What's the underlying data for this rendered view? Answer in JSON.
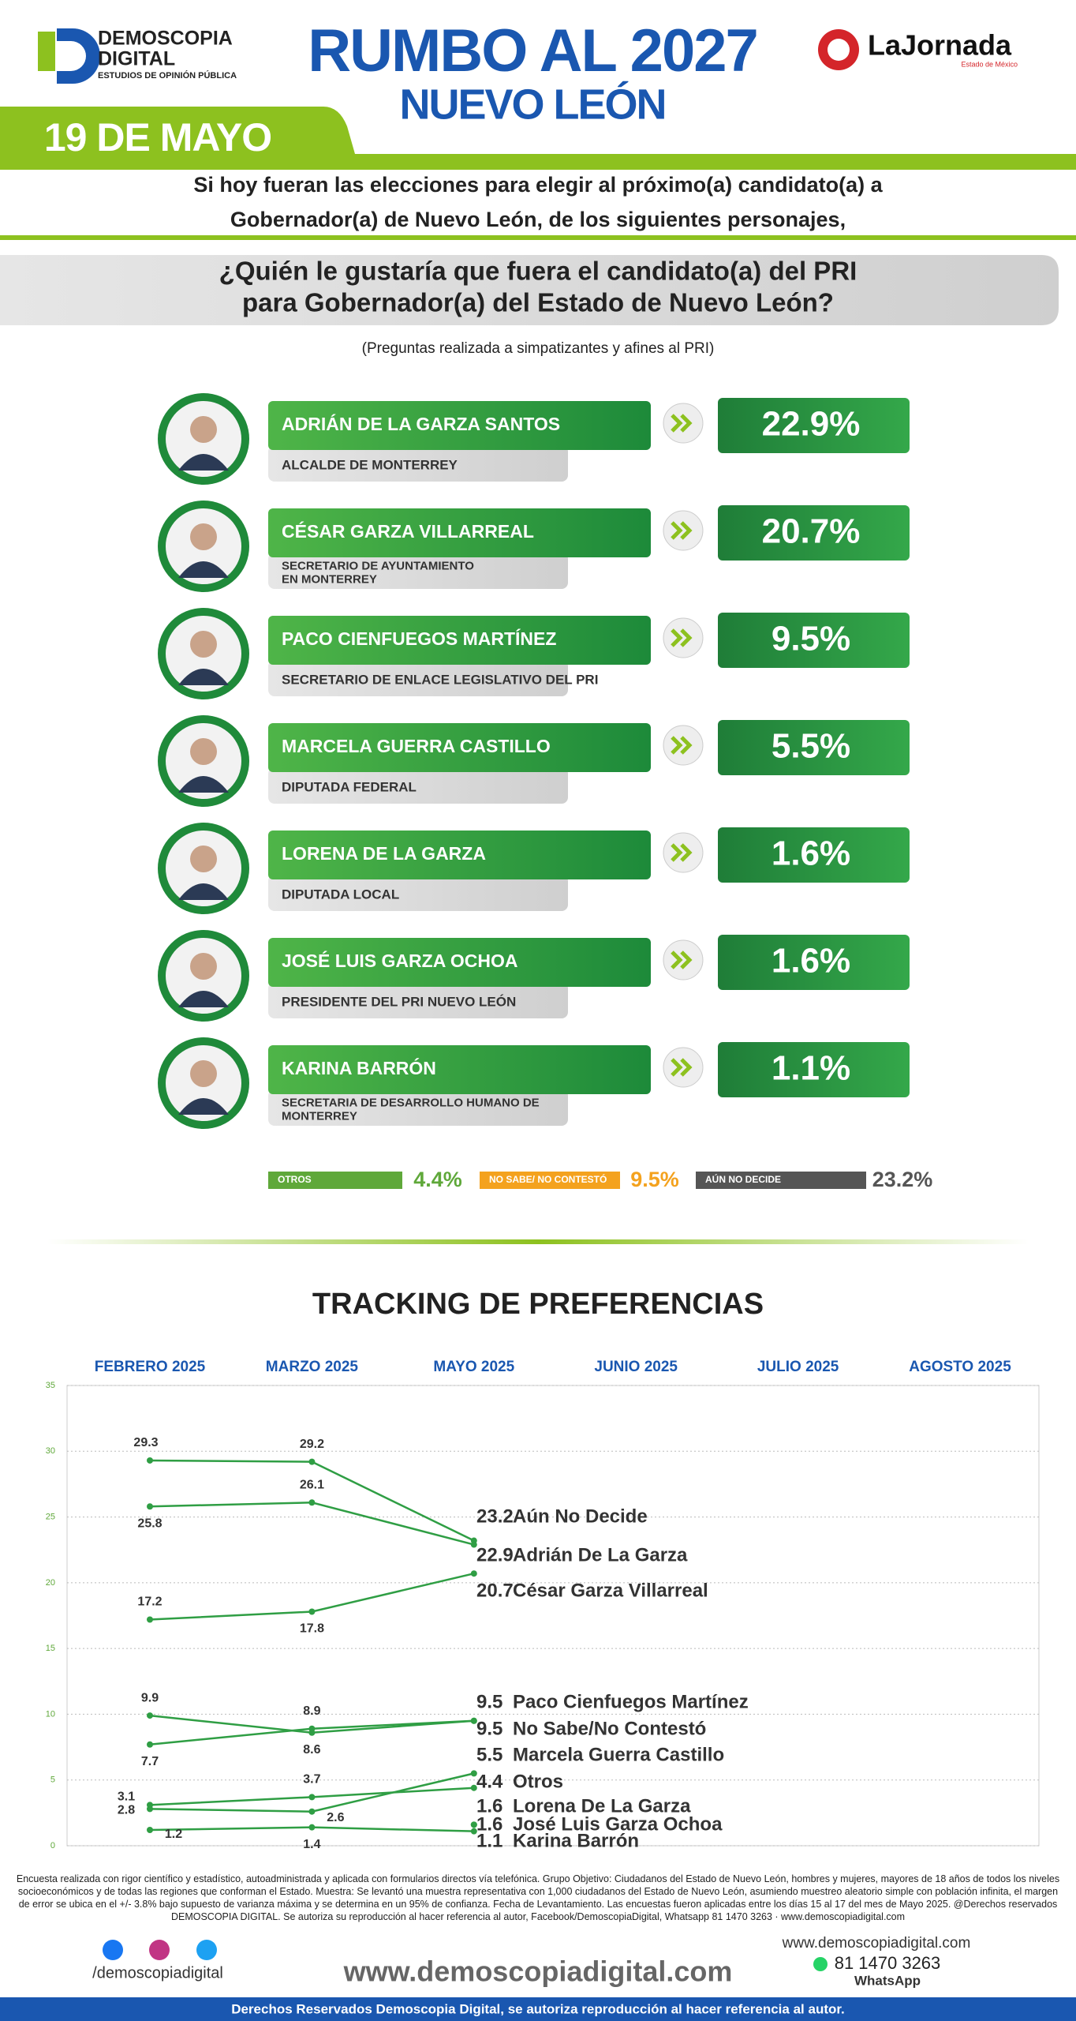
{
  "header": {
    "logo_name": "DEMOSCOPIA",
    "logo_name2": "DIGITAL",
    "logo_tagline": "ESTUDIOS DE OPINIÓN PÚBLICA",
    "title": "RUMBO AL 2027",
    "subtitle": "NUEVO LEÓN",
    "partner": "LaJornada",
    "partner_sub": "Estado de México",
    "date": "19 DE MAYO"
  },
  "intro": [
    "Si hoy fueran las elecciones para elegir al próximo(a) candidato(a) a",
    "Gobernador(a) de Nuevo León, de los siguientes personajes,"
  ],
  "question": [
    "¿Quién le gustaría que fuera el candidato(a) del PRI",
    "para Gobernador(a) del Estado de Nuevo León?"
  ],
  "note": "(Preguntas realizada a simpatizantes y afines al PRI)",
  "candidates": [
    {
      "name": "ADRIÁN DE LA GARZA SANTOS",
      "role": [
        "ALCALDE DE MONTERREY"
      ],
      "value": 22.9,
      "label": "22.9%"
    },
    {
      "name": "CÉSAR GARZA VILLARREAL",
      "role": [
        "SECRETARIO DE AYUNTAMIENTO",
        "EN MONTERREY"
      ],
      "value": 20.7,
      "label": "20.7%"
    },
    {
      "name": "PACO CIENFUEGOS MARTÍNEZ",
      "role": [
        "SECRETARIO DE ENLACE LEGISLATIVO DEL PRI"
      ],
      "value": 9.5,
      "label": "9.5%"
    },
    {
      "name": "MARCELA GUERRA CASTILLO",
      "role": [
        "DIPUTADA FEDERAL"
      ],
      "value": 5.5,
      "label": "5.5%"
    },
    {
      "name": "LORENA DE LA GARZA",
      "role": [
        "DIPUTADA LOCAL"
      ],
      "value": 1.6,
      "label": "1.6%"
    },
    {
      "name": "JOSÉ LUIS GARZA OCHOA",
      "role": [
        "PRESIDENTE DEL PRI NUEVO LEÓN"
      ],
      "value": 1.6,
      "label": "1.6%"
    },
    {
      "name": "KARINA BARRÓN",
      "role": [
        "SECRETARIA DE DESARROLLO HUMANO DE",
        "MONTERREY"
      ],
      "value": 1.1,
      "label": "1.1%"
    }
  ],
  "others": [
    {
      "name": "OTROS",
      "value": 4.4,
      "label": "4.4%",
      "color": "#5fa83a"
    },
    {
      "name": "NO SABE/ NO CONTESTÓ",
      "value": 9.5,
      "label": "9.5%",
      "color": "#f4a21e"
    },
    {
      "name": "AÚN NO DECIDE",
      "value": 23.2,
      "label": "23.2%",
      "color": "#555555"
    }
  ],
  "chart_data": {
    "type": "line",
    "title": "TRACKING DE PREFERENCIAS",
    "categories": [
      "FEBRERO 2025",
      "MARZO 2025",
      "MAYO 2025",
      "JUNIO 2025",
      "JULIO 2025",
      "AGOSTO 2025"
    ],
    "ylim": [
      0,
      35
    ],
    "yticks": [
      0,
      5,
      10,
      15,
      20,
      25,
      30,
      35
    ],
    "grid": true,
    "series": [
      {
        "name": "Aún No Decide",
        "color": "#2f9e44",
        "values": [
          29.3,
          29.2,
          23.2,
          null,
          null,
          null
        ]
      },
      {
        "name": "Adrián De La Garza",
        "color": "#2f9e44",
        "values": [
          25.8,
          26.1,
          22.9,
          null,
          null,
          null
        ]
      },
      {
        "name": "César Garza Villarreal",
        "color": "#2f9e44",
        "values": [
          17.2,
          17.8,
          20.7,
          null,
          null,
          null
        ]
      },
      {
        "name": "Paco Cienfuegos Martínez",
        "color": "#2f9e44",
        "values": [
          9.9,
          8.6,
          9.5,
          null,
          null,
          null
        ]
      },
      {
        "name": "No Sabe/No Contestó",
        "color": "#2f9e44",
        "values": [
          7.7,
          8.9,
          9.5,
          null,
          null,
          null
        ]
      },
      {
        "name": "Marcela Guerra Castillo",
        "color": "#2f9e44",
        "values": [
          2.8,
          2.6,
          5.5,
          null,
          null,
          null
        ]
      },
      {
        "name": "Otros",
        "color": "#2f9e44",
        "values": [
          3.1,
          3.7,
          4.4,
          null,
          null,
          null
        ]
      },
      {
        "name": "Lorena De La Garza",
        "color": "#2f9e44",
        "values": [
          null,
          null,
          1.6,
          null,
          null,
          null
        ]
      },
      {
        "name": "José Luis Garza Ochoa",
        "color": "#2f9e44",
        "values": [
          null,
          null,
          1.6,
          null,
          null,
          null
        ]
      },
      {
        "name": "Karina Barrón",
        "color": "#2f9e44",
        "values": [
          1.2,
          1.4,
          1.1,
          null,
          null,
          null
        ]
      }
    ]
  },
  "footer": {
    "methodology": "Encuesta realizada con rigor científico y estadístico, autoadministrada y aplicada con formularios directos vía telefónica. Grupo Objetivo: Ciudadanos del Estado de Nuevo León, hombres y mujeres, mayores de 18 años de todos los niveles socioeconómicos y de todas las regiones que conforman el Estado. Muestra: Se levantó una muestra representativa con 1,000 ciudadanos del Estado de Nuevo León, asumiendo muestreo aleatorio simple con población infinita, el margen de error se ubica en el +/- 3.8% bajo supuesto de varianza máxima y se determina en un 95% de confianza. Fecha de Levantamiento. Las encuestas fueron aplicadas entre los días 15 al 17 del mes de Mayo 2025. @Derechos reservados DEMOSCOPIA DIGITAL. Se autoriza su reproducción al hacer referencia al autor, Facebook/DemoscopiaDigital, Whatsapp 81 1470 3263 · www.demoscopiadigital.com",
    "social": "/demoscopiadigital",
    "website": "www.demoscopiadigital.com",
    "website_small": "www.demoscopiadigital.com",
    "phone": "81 1470 3263",
    "whatsapp": "WhatsApp",
    "rights": "Derechos Reservados Demoscopia Digital, se autoriza reproducción al hacer referencia al autor."
  }
}
